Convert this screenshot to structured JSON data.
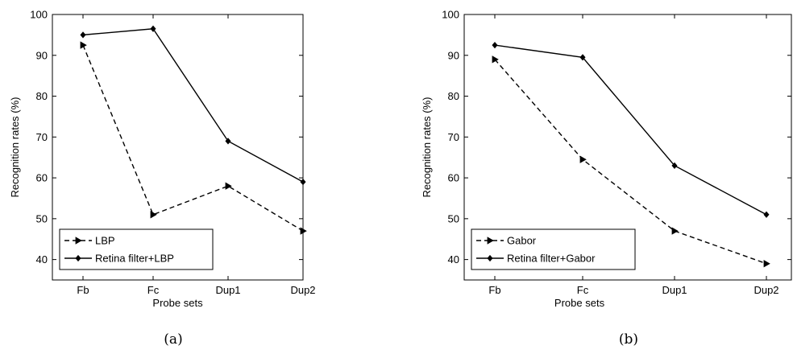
{
  "chart_data": [
    {
      "type": "line",
      "caption": "(a)",
      "categories": [
        "Fb",
        "Fc",
        "Dup1",
        "Dup2"
      ],
      "xlabel": "Probe sets",
      "ylabel": "Recognition rates (%)",
      "ylim": [
        35,
        100
      ],
      "yticks": [
        40,
        50,
        60,
        70,
        80,
        90,
        100
      ],
      "grid": false,
      "legend_position": "bottom-left",
      "series": [
        {
          "name": "LBP",
          "values": [
            92.5,
            51,
            58,
            47
          ],
          "style": "dashed",
          "marker": "triangle-right"
        },
        {
          "name": "Retina filter+LBP",
          "values": [
            95,
            96.5,
            69,
            59
          ],
          "style": "solid",
          "marker": "diamond"
        }
      ]
    },
    {
      "type": "line",
      "caption": "(b)",
      "categories": [
        "Fb",
        "Fc",
        "Dup1",
        "Dup2"
      ],
      "xlabel": "Probe sets",
      "ylabel": "Recognition rates (%)",
      "ylim": [
        35,
        100
      ],
      "yticks": [
        40,
        50,
        60,
        70,
        80,
        90,
        100
      ],
      "grid": false,
      "legend_position": "bottom-left",
      "series": [
        {
          "name": "Gabor",
          "values": [
            89,
            64.5,
            47,
            39
          ],
          "style": "dashed",
          "marker": "triangle-right"
        },
        {
          "name": "Retina filter+Gabor",
          "values": [
            92.5,
            89.5,
            63,
            51
          ],
          "style": "solid",
          "marker": "diamond"
        }
      ]
    }
  ]
}
